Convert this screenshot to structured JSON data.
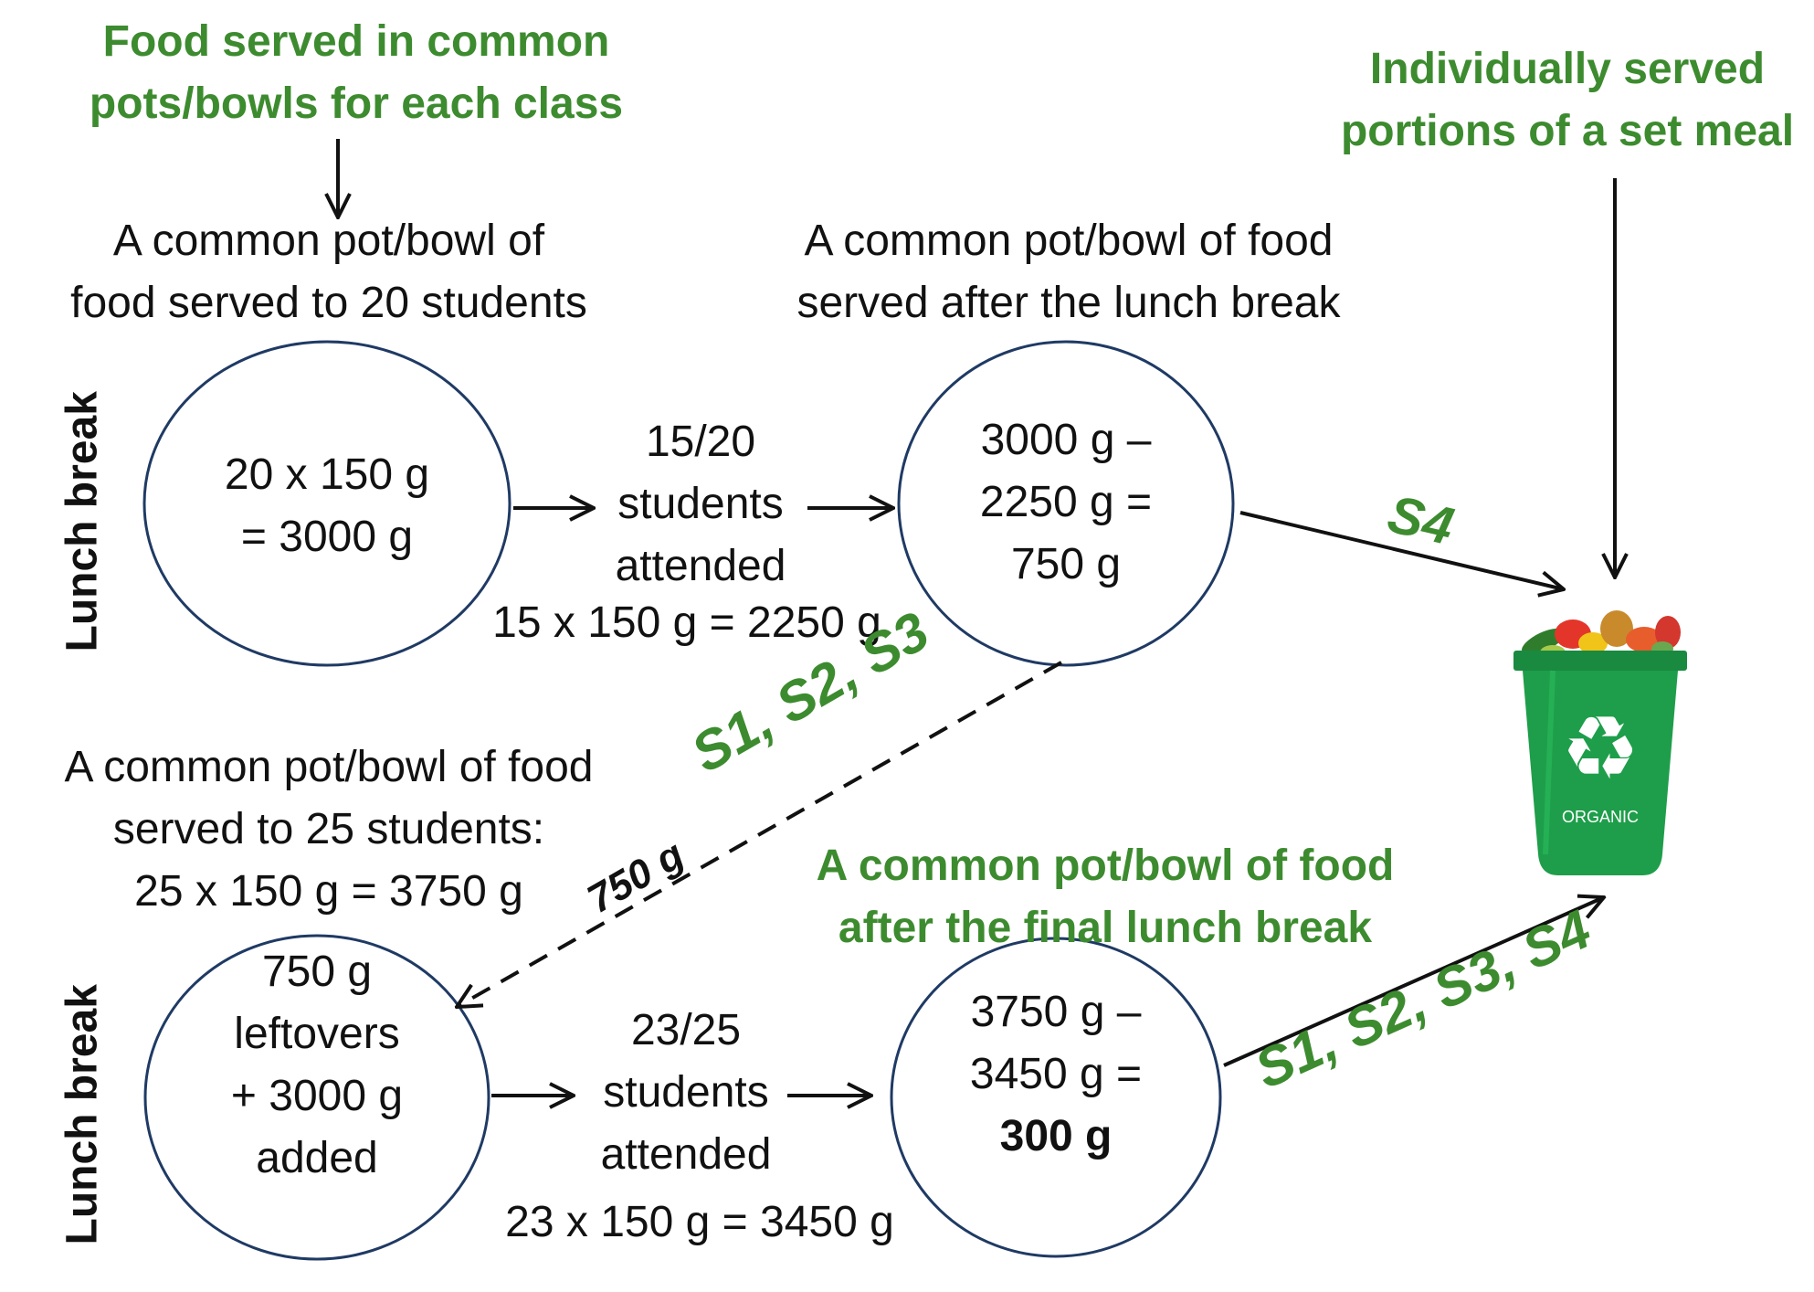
{
  "top_left_note": [
    "Food served in common",
    "pots/bowls for each class"
  ],
  "top_right_note": [
    "Individually served",
    "portions of a set meal"
  ],
  "caption_top_left": [
    "A common pot/bowl of",
    "food served to 20 students"
  ],
  "caption_top_mid": [
    "A common pot/bowl of food",
    "served after the lunch break"
  ],
  "caption_bottom_left": [
    "A common pot/bowl of food",
    "served to 25 students:",
    "25 x 150 g = 3750 g"
  ],
  "caption_bottom_mid": [
    "A common pot/bowl of food",
    "after the final lunch break"
  ],
  "lunch_break_label": "Lunch break",
  "circle1": [
    "20 x 150 g",
    "= 3000 g"
  ],
  "circle2": [
    "3000 g –",
    "2250 g =",
    "750 g"
  ],
  "circle3": [
    "750 g",
    "leftovers",
    "+ 3000 g",
    "added"
  ],
  "circle4": [
    "3750 g –",
    "3450 g =",
    "300 g"
  ],
  "attend_top": [
    "15/20",
    "students",
    "attended"
  ],
  "attend_top_calc": "15 x 150 g = 2250 g",
  "attend_bottom": [
    "23/25",
    "students",
    "attended"
  ],
  "attend_bottom_calc": "23 x 150 g = 3450 g",
  "label_s4": "S4",
  "label_s123": "S1, S2, S3",
  "label_750": "750 g",
  "label_s1234": "S1, S2, S3, S4",
  "bin_label": "ORGANIC",
  "colors": {
    "green": "#3d8b2f",
    "bin": "#1e9e4a",
    "circle_stroke": "#1f3a64"
  },
  "icons": {
    "bin": "recycling-bin-icon",
    "recycle": "recycle-icon"
  }
}
